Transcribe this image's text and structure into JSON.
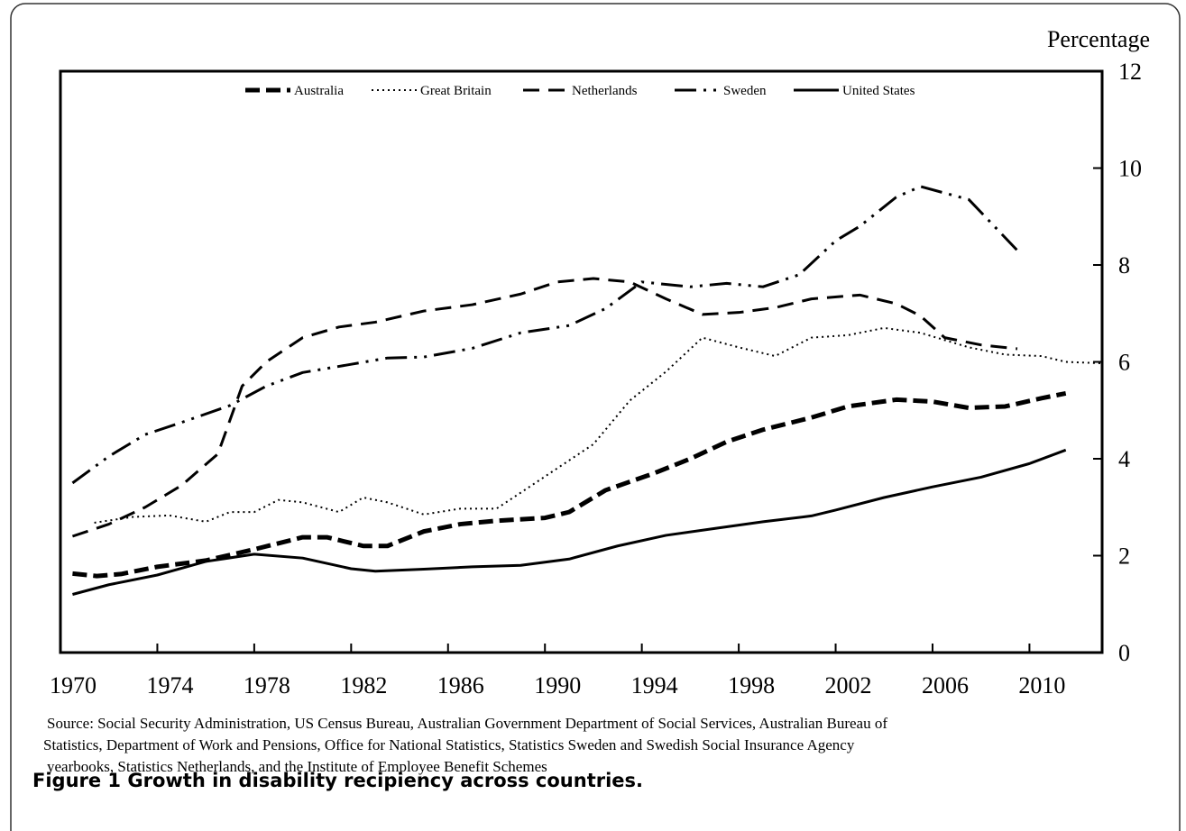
{
  "chart_data": {
    "type": "line",
    "y_label": "Percentage",
    "xlim": [
      1970,
      2013
    ],
    "xticks": [
      1970,
      1974,
      1978,
      1982,
      1986,
      1990,
      1994,
      1998,
      2002,
      2006,
      2010
    ],
    "ylim": [
      0,
      12
    ],
    "yticks": [
      0,
      2,
      4,
      6,
      8,
      10,
      12
    ],
    "series": [
      {
        "name": "Australia",
        "color": "#000000",
        "style": "bold-dash",
        "x": [
          1970.5,
          1971.5,
          1972.5,
          1974,
          1976,
          1978,
          1980,
          1981,
          1982.5,
          1983.5,
          1985,
          1986.5,
          1988,
          1990,
          1991,
          1992.5,
          1994.5,
          1996,
          1997.5,
          1999,
          2001,
          2002.5,
          2004.5,
          2006,
          2007.5,
          2009,
          2010.5,
          2011.5
        ],
        "values": [
          1.63,
          1.58,
          1.62,
          1.77,
          1.9,
          2.13,
          2.38,
          2.38,
          2.2,
          2.2,
          2.5,
          2.65,
          2.72,
          2.78,
          2.9,
          3.35,
          3.7,
          4.0,
          4.35,
          4.6,
          4.85,
          5.08,
          5.22,
          5.18,
          5.05,
          5.08,
          5.25,
          5.35
        ]
      },
      {
        "name": "Great Britain",
        "color": "#000000",
        "style": "dot",
        "x": [
          1971.4,
          1973,
          1974.5,
          1976,
          1977,
          1978,
          1979,
          1980,
          1981.5,
          1982.5,
          1983.5,
          1985,
          1986.5,
          1988,
          1989,
          1990.5,
          1992,
          1993.5,
          1995,
          1996.5,
          1998,
          1999.5,
          2001,
          2002.5,
          2004,
          2005.5,
          2007.5,
          2009,
          2010.5,
          2011.5,
          2013
        ],
        "values": [
          2.68,
          2.8,
          2.83,
          2.7,
          2.9,
          2.9,
          3.15,
          3.1,
          2.9,
          3.2,
          3.1,
          2.85,
          2.97,
          2.97,
          3.3,
          3.8,
          4.3,
          5.2,
          5.8,
          6.5,
          6.3,
          6.12,
          6.5,
          6.55,
          6.7,
          6.6,
          6.3,
          6.15,
          6.12,
          6.0,
          5.97
        ]
      },
      {
        "name": "Netherlands",
        "color": "#000000",
        "style": "dash",
        "x": [
          1970.5,
          1972,
          1973.5,
          1975,
          1976.5,
          1977.5,
          1978.5,
          1980,
          1981.5,
          1983,
          1985,
          1987,
          1989,
          1990.5,
          1992,
          1993.5,
          1995,
          1996.5,
          1998,
          1999.5,
          2001,
          2003,
          2004.5,
          2005.5,
          2006.5,
          2008,
          2009.5
        ],
        "values": [
          2.4,
          2.65,
          3.0,
          3.45,
          4.1,
          5.5,
          6.0,
          6.5,
          6.72,
          6.82,
          7.05,
          7.18,
          7.4,
          7.65,
          7.72,
          7.65,
          7.3,
          6.98,
          7.02,
          7.12,
          7.3,
          7.38,
          7.2,
          6.95,
          6.5,
          6.35,
          6.27
        ]
      },
      {
        "name": "Sweden",
        "color": "#000000",
        "style": "dash-dot",
        "x": [
          1970.5,
          1972,
          1973.5,
          1975,
          1977,
          1978.5,
          1980,
          1982,
          1983.5,
          1985,
          1987,
          1989,
          1991,
          1992.5,
          1994,
          1996,
          1997.5,
          1999,
          2000.5,
          2002,
          2003,
          2004.5,
          2005.5,
          2007.5,
          2009.5
        ],
        "values": [
          3.5,
          4.05,
          4.5,
          4.75,
          5.1,
          5.5,
          5.78,
          5.95,
          6.08,
          6.1,
          6.28,
          6.6,
          6.75,
          7.1,
          7.65,
          7.55,
          7.62,
          7.55,
          7.8,
          8.5,
          8.8,
          9.4,
          9.62,
          9.35,
          8.3
        ]
      },
      {
        "name": "United States",
        "color": "#000000",
        "style": "solid",
        "x": [
          1970.5,
          1972,
          1974,
          1976,
          1978,
          1980,
          1982,
          1983,
          1985,
          1987,
          1989,
          1991,
          1993,
          1995,
          1997,
          1999,
          2001,
          2002,
          2004,
          2006,
          2008,
          2010,
          2011.5
        ],
        "values": [
          1.2,
          1.4,
          1.6,
          1.88,
          2.03,
          1.95,
          1.73,
          1.68,
          1.72,
          1.77,
          1.8,
          1.93,
          2.2,
          2.42,
          2.56,
          2.7,
          2.82,
          2.94,
          3.2,
          3.42,
          3.62,
          3.9,
          4.18
        ]
      }
    ],
    "source": [
      "Source: Social Security Administration, US Census Bureau, Australian Government Department of Social Services, Australian Bureau of",
      "Statistics, Department of Work and Pensions, Office for National Statistics, Statistics  Sweden and Swedish Social Insurance Agency",
      "yearbooks, Statistics Netherlands, and the Institute of Employee Benefit Schemes"
    ],
    "caption": "Figure 1 Growth in disability recipiency across countries."
  }
}
